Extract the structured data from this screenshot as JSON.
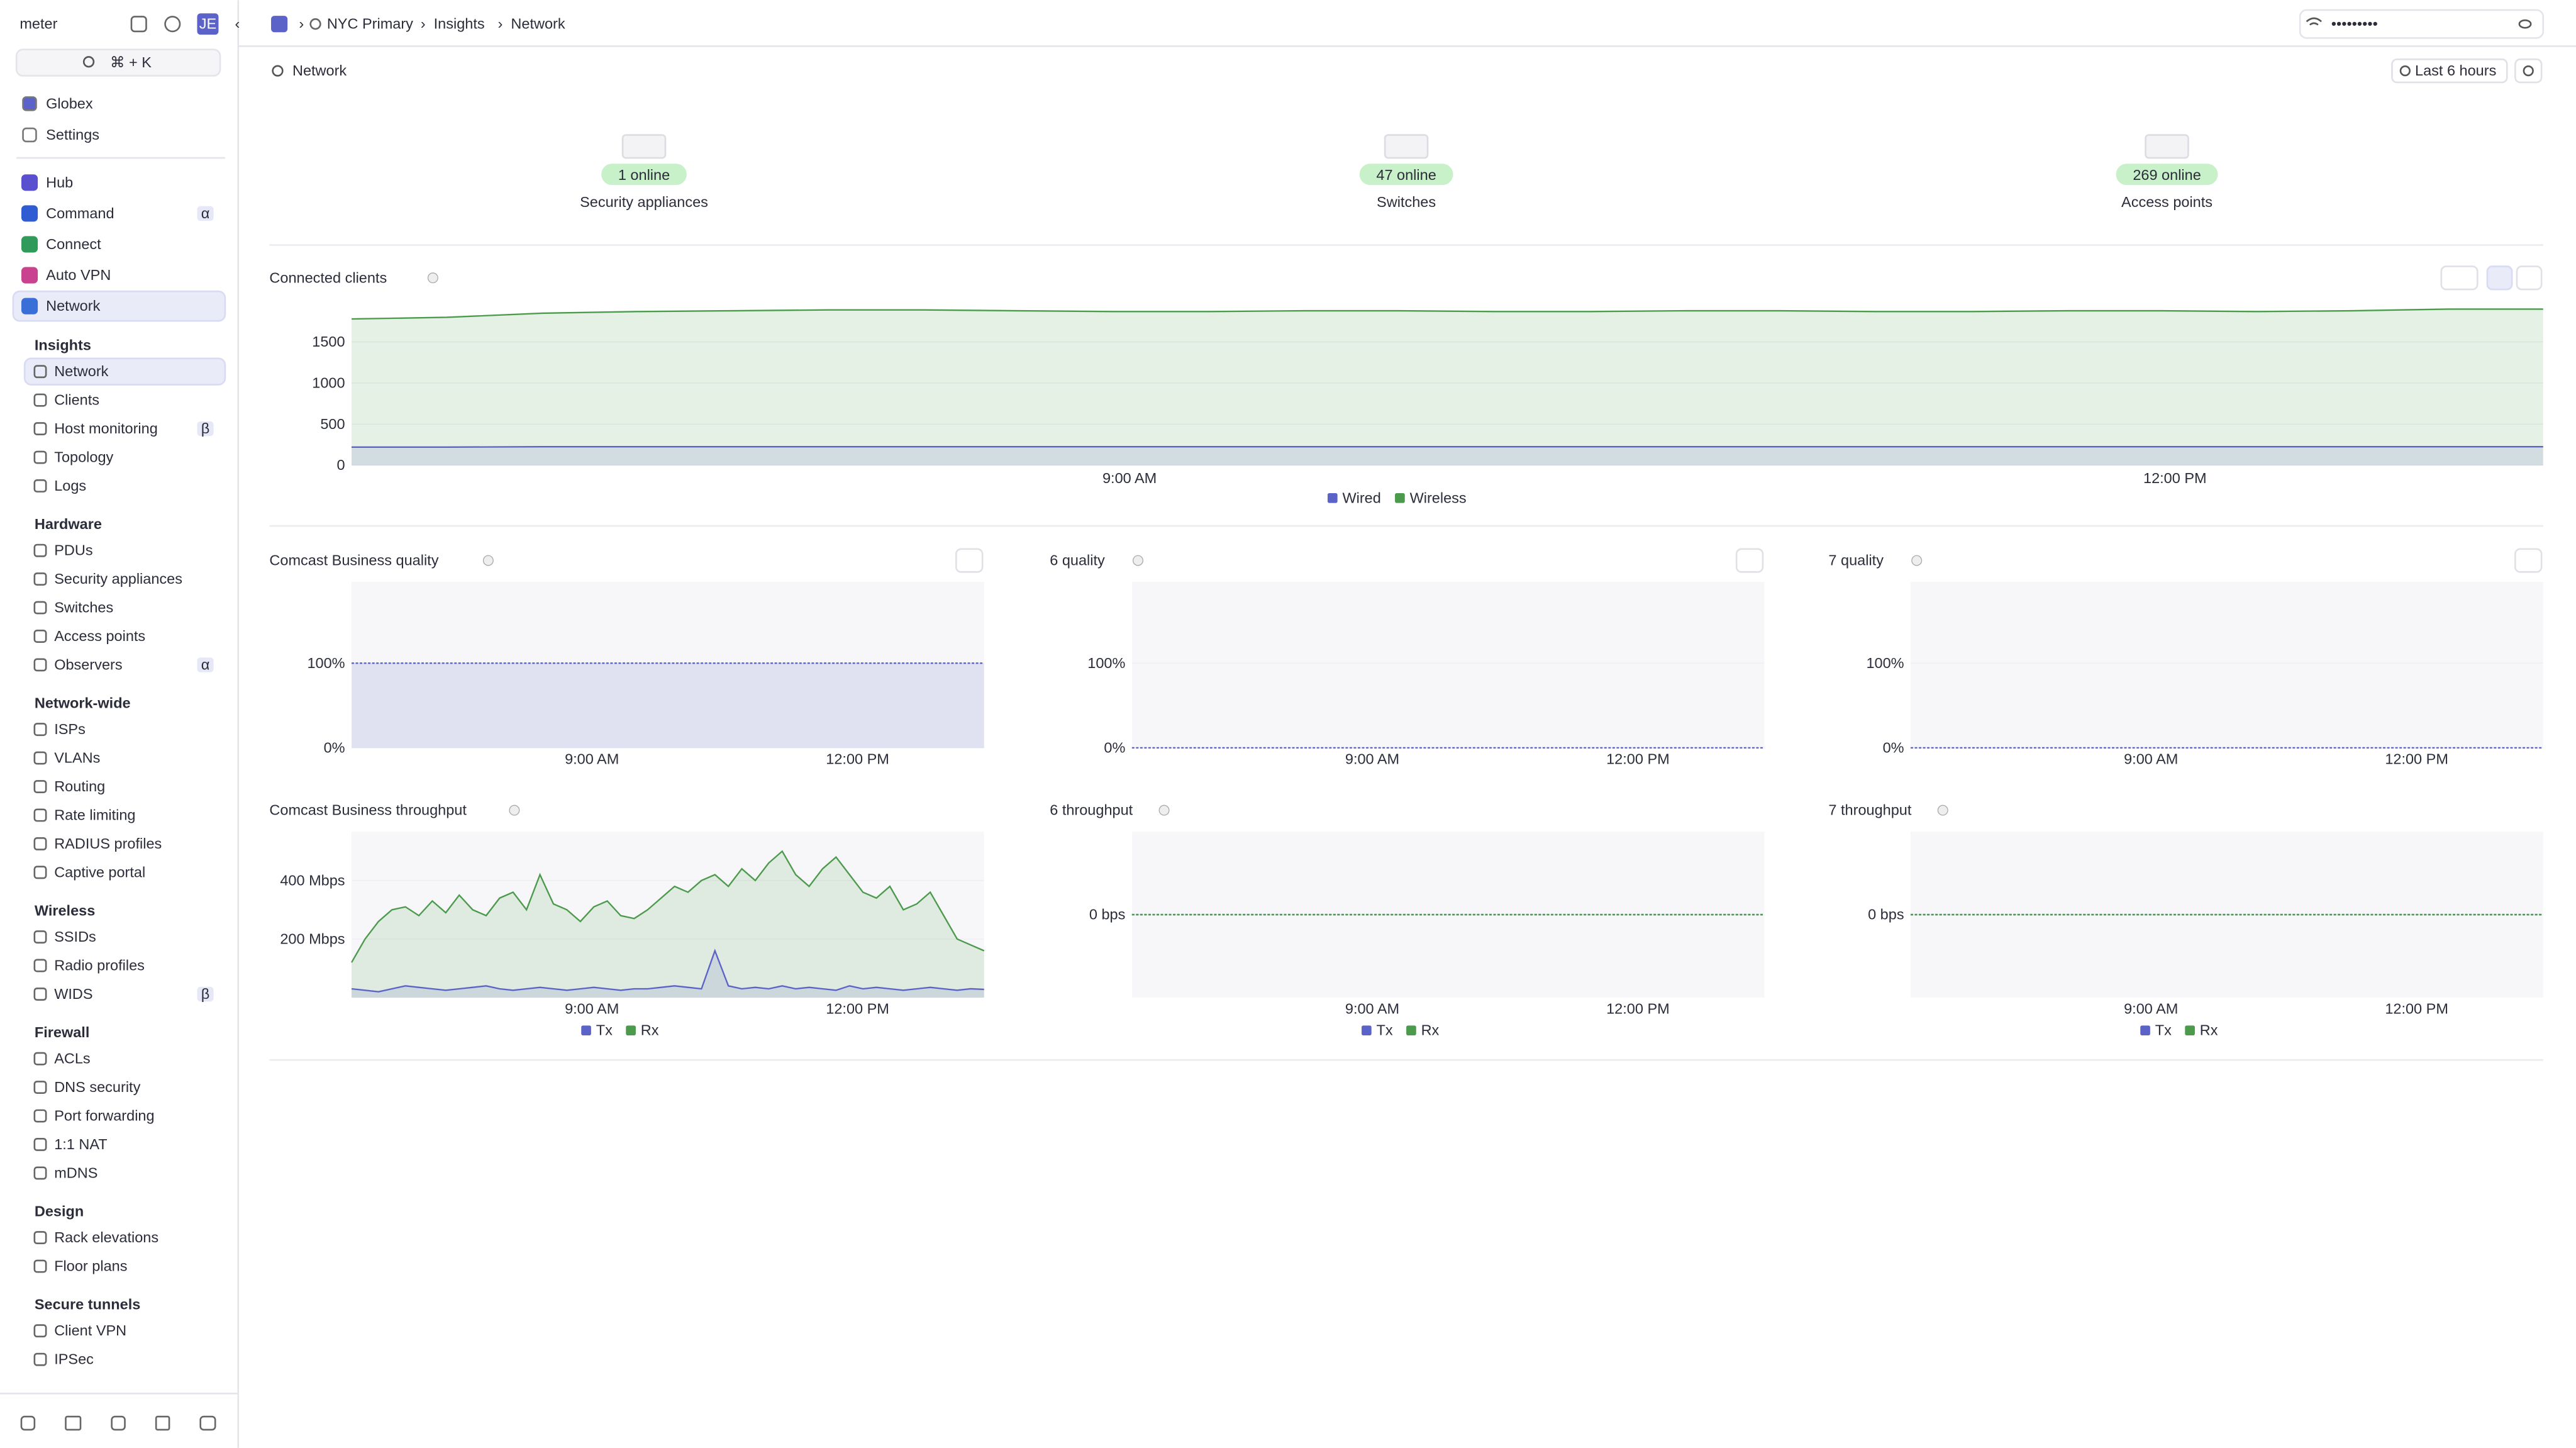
{
  "sidebar": {
    "logo": "meter",
    "avatar": "JE",
    "search_shortcut": "⌘ + K",
    "top_items": [
      "Globex",
      "Settings"
    ],
    "apps": [
      {
        "label": "Hub"
      },
      {
        "label": "Command",
        "badge": "α"
      },
      {
        "label": "Connect"
      },
      {
        "label": "Auto VPN"
      },
      {
        "label": "Network",
        "selected": true
      }
    ],
    "sections": [
      {
        "title": "Insights",
        "items": [
          {
            "label": "Network",
            "selected": true
          },
          {
            "label": "Clients"
          },
          {
            "label": "Host monitoring",
            "badge": "β"
          },
          {
            "label": "Topology"
          },
          {
            "label": "Logs"
          }
        ]
      },
      {
        "title": "Hardware",
        "items": [
          {
            "label": "PDUs"
          },
          {
            "label": "Security appliances"
          },
          {
            "label": "Switches"
          },
          {
            "label": "Access points"
          },
          {
            "label": "Observers",
            "badge": "α"
          }
        ]
      },
      {
        "title": "Network-wide",
        "items": [
          {
            "label": "ISPs"
          },
          {
            "label": "VLANs"
          },
          {
            "label": "Routing"
          },
          {
            "label": "Rate limiting"
          },
          {
            "label": "RADIUS profiles"
          },
          {
            "label": "Captive portal"
          }
        ]
      },
      {
        "title": "Wireless",
        "items": [
          {
            "label": "SSIDs"
          },
          {
            "label": "Radio profiles"
          },
          {
            "label": "WIDS",
            "badge": "β"
          }
        ]
      },
      {
        "title": "Firewall",
        "items": [
          {
            "label": "ACLs"
          },
          {
            "label": "DNS security"
          },
          {
            "label": "Port forwarding"
          },
          {
            "label": "1:1 NAT"
          },
          {
            "label": "mDNS"
          }
        ]
      },
      {
        "title": "Design",
        "items": [
          {
            "label": "Rack elevations"
          },
          {
            "label": "Floor plans"
          }
        ]
      },
      {
        "title": "Secure tunnels",
        "items": [
          {
            "label": "Client VPN"
          },
          {
            "label": "IPSec"
          }
        ]
      }
    ]
  },
  "header": {
    "breadcrumb": [
      "NYC Primary",
      "Insights",
      "Network"
    ],
    "wifi_password": "•••••••••"
  },
  "page": {
    "title": "Network",
    "time_range": "Last 6 hours"
  },
  "devices": [
    {
      "status": "1 online",
      "label": "Security appliances"
    },
    {
      "status": "47 online",
      "label": "Switches"
    },
    {
      "status": "269 online",
      "label": "Access points"
    }
  ],
  "charts": [
    {
      "type": "area",
      "title": "Connected clients",
      "ylim": [
        0,
        1960
      ],
      "yticks": [
        0,
        500,
        1000,
        1500
      ],
      "xtick_labels": [
        "9:00 AM",
        "12:00 PM"
      ],
      "series": [
        {
          "name": "Wired",
          "color": "#5b63c9",
          "values": [
            220,
            220,
            225,
            225,
            225,
            225,
            225,
            225,
            225,
            225,
            225,
            225,
            225,
            225,
            225,
            225,
            225,
            225,
            225,
            225,
            225,
            225,
            225,
            225
          ]
        },
        {
          "name": "Wireless",
          "color": "#4c9a4c",
          "values": [
            1780,
            1800,
            1850,
            1870,
            1880,
            1890,
            1890,
            1880,
            1870,
            1870,
            1880,
            1880,
            1870,
            1870,
            1880,
            1880,
            1870,
            1870,
            1880,
            1880,
            1870,
            1880,
            1900,
            1900
          ]
        }
      ]
    },
    {
      "type": "quality",
      "title": "Comcast Business quality",
      "ylim": [
        0,
        196
      ],
      "yticks": [
        {
          "value": 0,
          "label": "0%"
        },
        {
          "value": 100,
          "label": "100%"
        }
      ],
      "xtick_labels": [
        "9:00 AM",
        "12:00 PM"
      ],
      "series": [
        {
          "color": "#5b63c9",
          "values": [
            100,
            100,
            100,
            100,
            100,
            100,
            100,
            100,
            100,
            100,
            100,
            100
          ]
        }
      ]
    },
    {
      "type": "quality",
      "title": "6 quality",
      "ylim": [
        0,
        196
      ],
      "yticks": [
        {
          "value": 0,
          "label": "0%"
        },
        {
          "value": 100,
          "label": "100%"
        }
      ],
      "xtick_labels": [
        "9:00 AM",
        "12:00 PM"
      ],
      "series": [
        {
          "color": "#5b63c9",
          "values": [
            0,
            0,
            0,
            0,
            0,
            0,
            0,
            0,
            0,
            0,
            0,
            0
          ]
        }
      ]
    },
    {
      "type": "quality",
      "title": "7 quality",
      "ylim": [
        0,
        196
      ],
      "yticks": [
        {
          "value": 0,
          "label": "0%"
        },
        {
          "value": 100,
          "label": "100%"
        }
      ],
      "xtick_labels": [
        "9:00 AM",
        "12:00 PM"
      ],
      "series": [
        {
          "color": "#5b63c9",
          "values": [
            0,
            0,
            0,
            0,
            0,
            0,
            0,
            0,
            0,
            0,
            0,
            0
          ]
        }
      ]
    },
    {
      "type": "throughput",
      "title": "Comcast Business throughput",
      "ylim": [
        0,
        567
      ],
      "yticks": [
        {
          "value": 200,
          "label": "200 Mbps"
        },
        {
          "value": 400,
          "label": "400 Mbps"
        }
      ],
      "xtick_labels": [
        "9:00 AM",
        "12:00 PM"
      ],
      "series": [
        {
          "name": "Tx",
          "color": "#5b63c9",
          "values": [
            30,
            25,
            20,
            30,
            40,
            35,
            30,
            25,
            30,
            35,
            40,
            30,
            25,
            30,
            35,
            30,
            25,
            30,
            35,
            30,
            25,
            30,
            30,
            35,
            40,
            35,
            30,
            160,
            40,
            30,
            35,
            30,
            40,
            30,
            35,
            30,
            25,
            40,
            30,
            35,
            30,
            25,
            30,
            35,
            30,
            25,
            30,
            28
          ]
        },
        {
          "name": "Rx",
          "color": "#4c9a4c",
          "values": [
            120,
            200,
            260,
            300,
            310,
            280,
            330,
            290,
            350,
            300,
            280,
            340,
            360,
            300,
            420,
            320,
            300,
            260,
            310,
            330,
            280,
            270,
            300,
            340,
            380,
            360,
            400,
            420,
            380,
            440,
            400,
            460,
            500,
            420,
            380,
            440,
            480,
            420,
            360,
            340,
            380,
            300,
            320,
            360,
            280,
            200,
            180,
            160
          ]
        }
      ]
    },
    {
      "type": "throughput",
      "title": "6 throughput",
      "ylim": [
        -1,
        1
      ],
      "yticks": [
        {
          "value": 0,
          "label": "0 bps"
        }
      ],
      "xtick_labels": [
        "9:00 AM",
        "12:00 PM"
      ],
      "series": [
        {
          "name": "Tx",
          "color": "#5b63c9",
          "values": [
            0,
            0,
            0,
            0,
            0,
            0,
            0,
            0,
            0,
            0,
            0,
            0
          ]
        },
        {
          "name": "Rx",
          "color": "#4c9a4c",
          "values": [
            0,
            0,
            0,
            0,
            0,
            0,
            0,
            0,
            0,
            0,
            0,
            0
          ]
        }
      ]
    },
    {
      "type": "throughput",
      "title": "7 throughput",
      "ylim": [
        -1,
        1
      ],
      "yticks": [
        {
          "value": 0,
          "label": "0 bps"
        }
      ],
      "xtick_labels": [
        "9:00 AM",
        "12:00 PM"
      ],
      "series": [
        {
          "name": "Tx",
          "color": "#5b63c9",
          "values": [
            0,
            0,
            0,
            0,
            0,
            0,
            0,
            0,
            0,
            0,
            0,
            0
          ]
        },
        {
          "name": "Rx",
          "color": "#4c9a4c",
          "values": [
            0,
            0,
            0,
            0,
            0,
            0,
            0,
            0,
            0,
            0,
            0,
            0
          ]
        }
      ]
    }
  ]
}
